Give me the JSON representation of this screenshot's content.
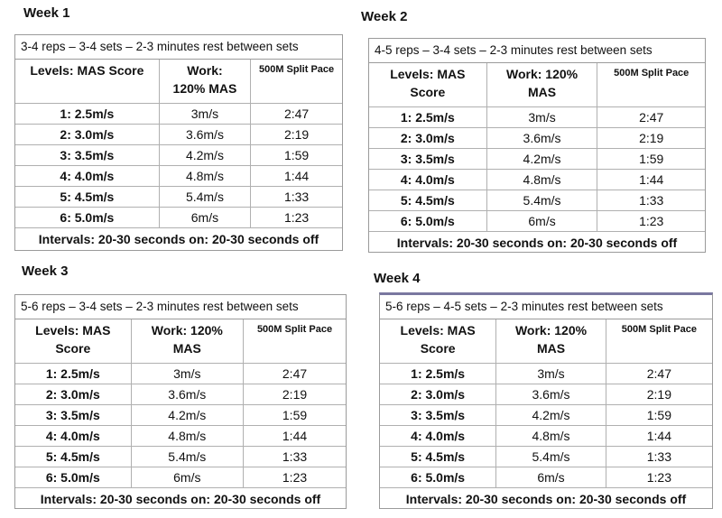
{
  "weeks": [
    {
      "title": "Week 1",
      "scheme": "3-4 reps – 3-4 sets – 2-3 minutes rest between sets",
      "headers": {
        "level_1": "Levels: MAS Score",
        "level_2": "",
        "work_1": "Work:",
        "work_2": "120% MAS",
        "split": "500M Split Pace"
      },
      "rows": [
        {
          "level": "1: 2.5m/s",
          "work": "3m/s",
          "split": "2:47"
        },
        {
          "level": "2: 3.0m/s",
          "work": "3.6m/s",
          "split": "2:19"
        },
        {
          "level": "3: 3.5m/s",
          "work": "4.2m/s",
          "split": "1:59"
        },
        {
          "level": "4: 4.0m/s",
          "work": "4.8m/s",
          "split": "1:44"
        },
        {
          "level": "5: 4.5m/s",
          "work": "5.4m/s",
          "split": "1:33"
        },
        {
          "level": "6: 5.0m/s",
          "work": "6m/s",
          "split": "1:23"
        }
      ],
      "intervals": "Intervals: 20-30 seconds on: 20-30 seconds off"
    },
    {
      "title": "Week 2",
      "scheme": "4-5 reps – 3-4 sets – 2-3 minutes rest between sets",
      "headers": {
        "level_1": "Levels: MAS",
        "level_2": "Score",
        "work_1": "Work: 120%",
        "work_2": "MAS",
        "split": "500M Split Pace"
      },
      "rows": [
        {
          "level": "1: 2.5m/s",
          "work": "3m/s",
          "split": "2:47"
        },
        {
          "level": "2: 3.0m/s",
          "work": "3.6m/s",
          "split": "2:19"
        },
        {
          "level": "3: 3.5m/s",
          "work": "4.2m/s",
          "split": "1:59"
        },
        {
          "level": "4: 4.0m/s",
          "work": "4.8m/s",
          "split": "1:44"
        },
        {
          "level": "5: 4.5m/s",
          "work": "5.4m/s",
          "split": "1:33"
        },
        {
          "level": "6: 5.0m/s",
          "work": "6m/s",
          "split": "1:23"
        }
      ],
      "intervals": "Intervals: 20-30 seconds on: 20-30 seconds off"
    },
    {
      "title": "Week 3",
      "scheme": "5-6 reps – 3-4 sets – 2-3 minutes rest between sets",
      "headers": {
        "level_1": "Levels: MAS",
        "level_2": "Score",
        "work_1": "Work: 120%",
        "work_2": "MAS",
        "split": "500M Split Pace"
      },
      "rows": [
        {
          "level": "1: 2.5m/s",
          "work": "3m/s",
          "split": "2:47"
        },
        {
          "level": "2: 3.0m/s",
          "work": "3.6m/s",
          "split": "2:19"
        },
        {
          "level": "3: 3.5m/s",
          "work": "4.2m/s",
          "split": "1:59"
        },
        {
          "level": "4: 4.0m/s",
          "work": "4.8m/s",
          "split": "1:44"
        },
        {
          "level": "5: 4.5m/s",
          "work": "5.4m/s",
          "split": "1:33"
        },
        {
          "level": "6: 5.0m/s",
          "work": "6m/s",
          "split": "1:23"
        }
      ],
      "intervals": "Intervals: 20-30 seconds on: 20-30 seconds off"
    },
    {
      "title": "Week 4",
      "scheme": "5-6 reps – 4-5 sets – 2-3 minutes rest between sets",
      "headers": {
        "level_1": "Levels: MAS",
        "level_2": "Score",
        "work_1": "Work: 120%",
        "work_2": "MAS",
        "split": "500M Split Pace"
      },
      "rows": [
        {
          "level": "1: 2.5m/s",
          "work": "3m/s",
          "split": "2:47"
        },
        {
          "level": "2: 3.0m/s",
          "work": "3.6m/s",
          "split": "2:19"
        },
        {
          "level": "3: 3.5m/s",
          "work": "4.2m/s",
          "split": "1:59"
        },
        {
          "level": "4: 4.0m/s",
          "work": "4.8m/s",
          "split": "1:44"
        },
        {
          "level": "5: 4.5m/s",
          "work": "5.4m/s",
          "split": "1:33"
        },
        {
          "level": "6: 5.0m/s",
          "work": "6m/s",
          "split": "1:23"
        }
      ],
      "intervals": "Intervals: 20-30 seconds on: 20-30 seconds off"
    }
  ]
}
